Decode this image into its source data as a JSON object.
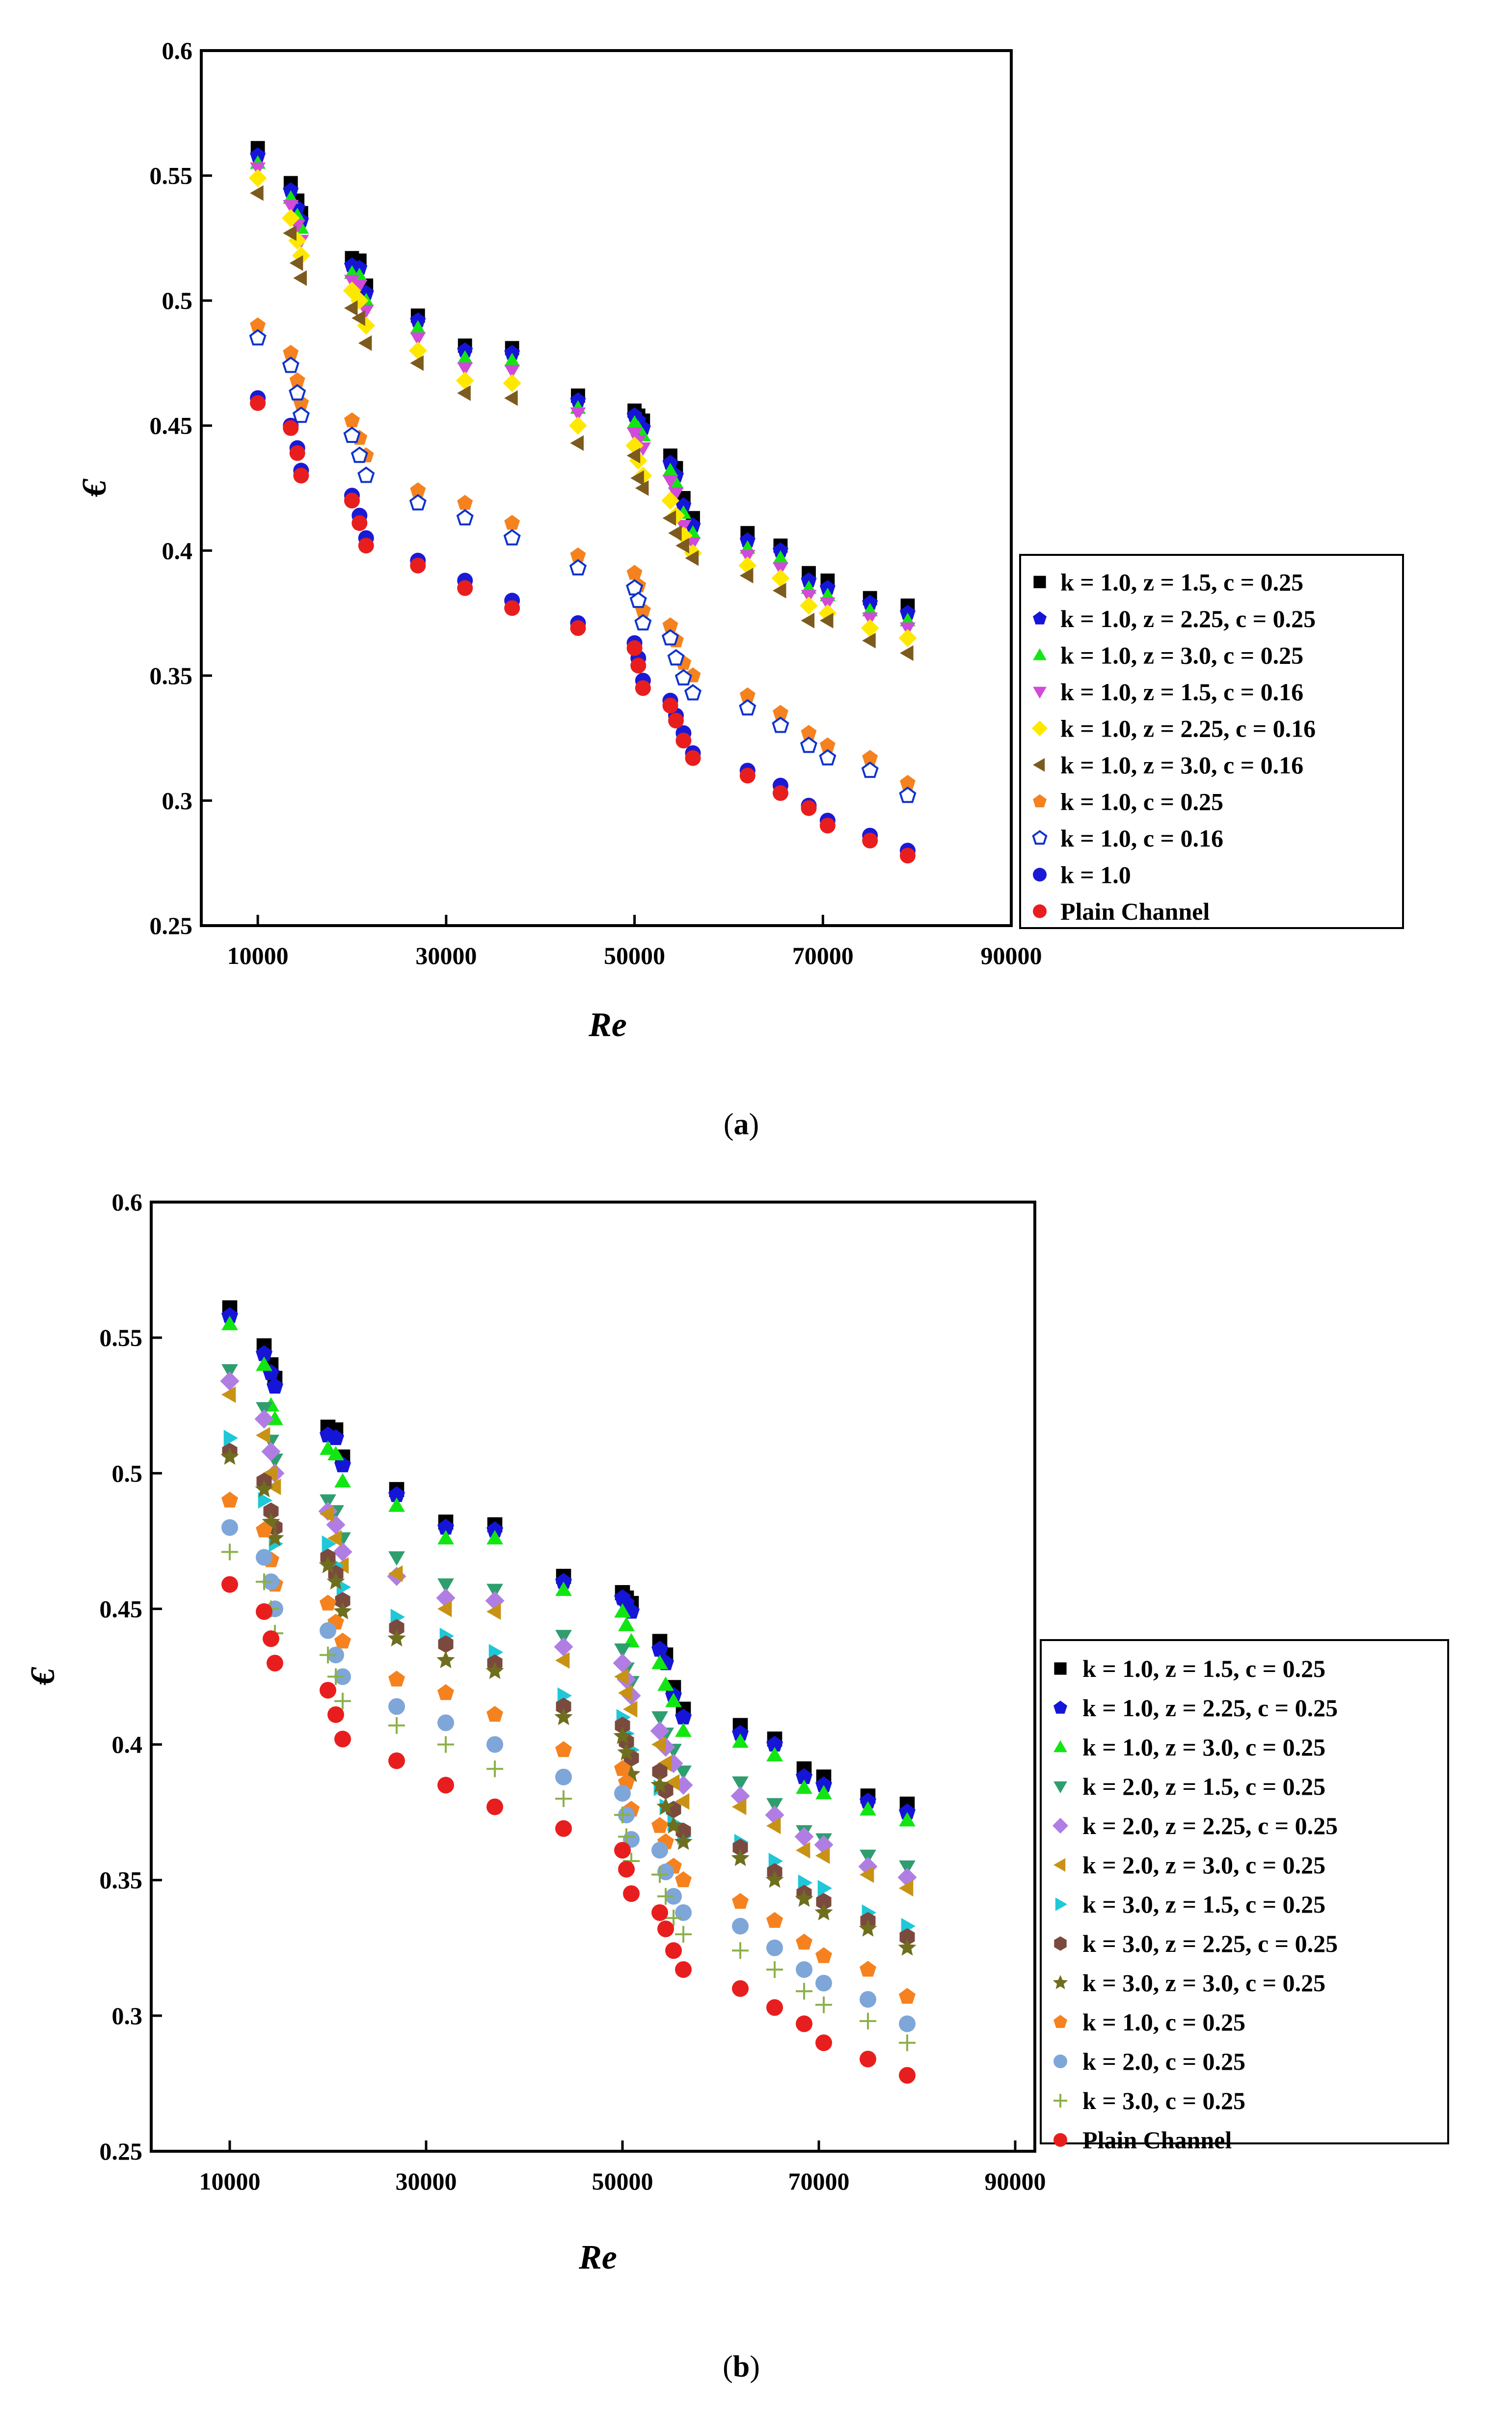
{
  "chart_data": [
    {
      "panel": "a",
      "caption": "a",
      "type": "scatter",
      "xlabel": "Re",
      "ylabel": "€",
      "xlim": [
        4000,
        90000
      ],
      "ylim": [
        0.25,
        0.6
      ],
      "xticks": [
        10000,
        30000,
        50000,
        70000,
        90000
      ],
      "xtick_labels": [
        "10000",
        "30000",
        "50000",
        "70000",
        "90000"
      ],
      "yticks": [
        0.25,
        0.3,
        0.35,
        0.4,
        0.45,
        0.5,
        0.55,
        0.6
      ],
      "ytick_labels": [
        "0.25",
        "0.3",
        "0.35",
        "0.4",
        "0.45",
        "0.5",
        "0.55",
        "0.6"
      ],
      "legend_position": "right",
      "x": [
        10000,
        13500,
        14200,
        14600,
        20000,
        20800,
        21500,
        27000,
        32000,
        37000,
        44000,
        50000,
        50400,
        50900,
        53800,
        54400,
        55200,
        56200,
        62000,
        65500,
        68500,
        70500,
        75000,
        79000
      ],
      "series": [
        {
          "name": "k = 1.0, z = 1.5, c = 0.25",
          "marker": "square",
          "color": "#000000",
          "values": [
            0.561,
            0.547,
            0.54,
            0.535,
            0.517,
            0.516,
            0.506,
            0.494,
            0.482,
            0.481,
            0.462,
            0.456,
            0.454,
            0.452,
            0.438,
            0.433,
            0.421,
            0.413,
            0.407,
            0.402,
            0.391,
            0.388,
            0.381,
            0.378
          ]
        },
        {
          "name": "k = 1.0, z = 2.25, c = 0.25",
          "marker": "pentagon",
          "color": "#1515d8",
          "values": [
            0.558,
            0.544,
            0.537,
            0.532,
            0.514,
            0.513,
            0.503,
            0.492,
            0.48,
            0.479,
            0.46,
            0.454,
            0.452,
            0.449,
            0.435,
            0.43,
            0.418,
            0.41,
            0.404,
            0.4,
            0.388,
            0.385,
            0.379,
            0.375
          ]
        },
        {
          "name": "k = 1.0, z = 3.0, c = 0.25",
          "marker": "triangle-up",
          "color": "#12e612",
          "values": [
            0.555,
            0.541,
            0.534,
            0.529,
            0.511,
            0.51,
            0.5,
            0.489,
            0.477,
            0.476,
            0.457,
            0.451,
            0.449,
            0.446,
            0.432,
            0.427,
            0.415,
            0.407,
            0.401,
            0.397,
            0.385,
            0.382,
            0.376,
            0.372
          ]
        },
        {
          "name": "k = 1.0, z = 1.5, c = 0.16",
          "marker": "triangle-down",
          "color": "#d24ad8",
          "values": [
            0.553,
            0.538,
            0.53,
            0.524,
            0.508,
            0.506,
            0.496,
            0.485,
            0.473,
            0.472,
            0.455,
            0.447,
            0.444,
            0.441,
            0.428,
            0.423,
            0.41,
            0.403,
            0.398,
            0.393,
            0.382,
            0.379,
            0.373,
            0.369
          ]
        },
        {
          "name": "k = 1.0, z = 2.25, c = 0.16",
          "marker": "diamond",
          "color": "#ffe800",
          "values": [
            0.549,
            0.533,
            0.524,
            0.518,
            0.504,
            0.5,
            0.49,
            0.48,
            0.468,
            0.467,
            0.45,
            0.442,
            0.436,
            0.43,
            0.42,
            0.414,
            0.406,
            0.399,
            0.394,
            0.389,
            0.378,
            0.375,
            0.369,
            0.365
          ]
        },
        {
          "name": "k = 1.0, z = 3.0, c = 0.16",
          "marker": "triangle-left",
          "color": "#7d5a1e",
          "values": [
            0.543,
            0.527,
            0.515,
            0.509,
            0.497,
            0.493,
            0.483,
            0.475,
            0.463,
            0.461,
            0.443,
            0.438,
            0.429,
            0.425,
            0.413,
            0.407,
            0.402,
            0.397,
            0.39,
            0.384,
            0.372,
            0.372,
            0.364,
            0.359
          ]
        },
        {
          "name": "k = 1.0, c = 0.25",
          "marker": "pentagon",
          "color": "#f5821e",
          "values": [
            0.49,
            0.479,
            0.468,
            0.459,
            0.452,
            0.445,
            0.438,
            0.424,
            0.419,
            0.411,
            0.398,
            0.391,
            0.386,
            0.376,
            0.37,
            0.364,
            0.355,
            0.35,
            0.342,
            0.335,
            0.327,
            0.322,
            0.317,
            0.307
          ]
        },
        {
          "name": "k = 1.0, c = 0.16",
          "marker": "pentagon-open",
          "color": "#0f33cc",
          "values": [
            0.485,
            0.474,
            0.463,
            0.454,
            0.446,
            0.438,
            0.43,
            0.419,
            0.413,
            0.405,
            0.393,
            0.385,
            0.38,
            0.371,
            0.365,
            0.357,
            0.349,
            0.343,
            0.337,
            0.33,
            0.322,
            0.317,
            0.312,
            0.302
          ]
        },
        {
          "name": "k = 1.0",
          "marker": "circle",
          "color": "#1a1ad6",
          "values": [
            0.461,
            0.45,
            0.441,
            0.432,
            0.422,
            0.414,
            0.405,
            0.396,
            0.388,
            0.38,
            0.371,
            0.363,
            0.357,
            0.348,
            0.34,
            0.334,
            0.327,
            0.319,
            0.312,
            0.306,
            0.298,
            0.292,
            0.286,
            0.28
          ]
        },
        {
          "name": "Plain Channel",
          "marker": "circle",
          "color": "#e81e1e",
          "values": [
            0.459,
            0.449,
            0.439,
            0.43,
            0.42,
            0.411,
            0.402,
            0.394,
            0.385,
            0.377,
            0.369,
            0.361,
            0.354,
            0.345,
            0.338,
            0.332,
            0.324,
            0.317,
            0.31,
            0.303,
            0.297,
            0.29,
            0.284,
            0.278
          ]
        }
      ]
    },
    {
      "panel": "b",
      "caption": "b",
      "type": "scatter",
      "xlabel": "Re",
      "ylabel": "€",
      "xlim": [
        2000,
        92000
      ],
      "ylim": [
        0.25,
        0.6
      ],
      "xticks": [
        10000,
        30000,
        50000,
        70000,
        90000
      ],
      "xtick_labels": [
        "10000",
        "30000",
        "50000",
        "70000",
        "90000"
      ],
      "yticks": [
        0.25,
        0.3,
        0.35,
        0.4,
        0.45,
        0.5,
        0.55,
        0.6
      ],
      "ytick_labels": [
        "0.25",
        "0.3",
        "0.35",
        "0.4",
        "0.45",
        "0.5",
        "0.55",
        "0.6"
      ],
      "legend_position": "right",
      "x": [
        10000,
        13500,
        14200,
        14600,
        20000,
        20800,
        21500,
        27000,
        32000,
        37000,
        44000,
        50000,
        50400,
        50900,
        53800,
        54400,
        55200,
        56200,
        62000,
        65500,
        68500,
        70500,
        75000,
        79000
      ],
      "series": [
        {
          "name": "k = 1.0, z = 1.5, c = 0.25",
          "marker": "square",
          "color": "#000000",
          "values": [
            0.561,
            0.547,
            0.54,
            0.535,
            0.517,
            0.516,
            0.506,
            0.494,
            0.482,
            0.481,
            0.462,
            0.456,
            0.454,
            0.452,
            0.438,
            0.433,
            0.421,
            0.413,
            0.407,
            0.402,
            0.391,
            0.388,
            0.381,
            0.378
          ]
        },
        {
          "name": "k = 1.0, z = 2.25, c = 0.25",
          "marker": "pentagon",
          "color": "#1515d8",
          "values": [
            0.558,
            0.544,
            0.537,
            0.532,
            0.514,
            0.513,
            0.503,
            0.492,
            0.48,
            0.479,
            0.46,
            0.454,
            0.452,
            0.449,
            0.435,
            0.43,
            0.418,
            0.41,
            0.404,
            0.4,
            0.388,
            0.385,
            0.379,
            0.375
          ]
        },
        {
          "name": "k = 1.0, z = 3.0, c = 0.25",
          "marker": "triangle-up",
          "color": "#12e612",
          "values": [
            0.555,
            0.54,
            0.525,
            0.52,
            0.509,
            0.507,
            0.497,
            0.488,
            0.476,
            0.476,
            0.457,
            0.449,
            0.444,
            0.438,
            0.43,
            0.422,
            0.416,
            0.405,
            0.401,
            0.396,
            0.384,
            0.382,
            0.376,
            0.372
          ]
        },
        {
          "name": "k = 2.0, z = 1.5, c = 0.25",
          "marker": "triangle-down",
          "color": "#2e9e6e",
          "values": [
            0.538,
            0.524,
            0.512,
            0.505,
            0.49,
            0.486,
            0.476,
            0.469,
            0.459,
            0.457,
            0.44,
            0.435,
            0.428,
            0.423,
            0.41,
            0.404,
            0.398,
            0.39,
            0.386,
            0.378,
            0.368,
            0.365,
            0.359,
            0.355
          ]
        },
        {
          "name": "k = 2.0, z = 2.25, c = 0.25",
          "marker": "diamond",
          "color": "#b07ee2",
          "values": [
            0.534,
            0.52,
            0.508,
            0.5,
            0.486,
            0.481,
            0.471,
            0.462,
            0.454,
            0.453,
            0.436,
            0.43,
            0.424,
            0.418,
            0.405,
            0.399,
            0.393,
            0.385,
            0.381,
            0.374,
            0.366,
            0.363,
            0.355,
            0.351
          ]
        },
        {
          "name": "k = 2.0, z = 3.0, c = 0.25",
          "marker": "triangle-left",
          "color": "#c89214",
          "values": [
            0.529,
            0.514,
            0.5,
            0.495,
            0.485,
            0.476,
            0.466,
            0.463,
            0.45,
            0.449,
            0.431,
            0.425,
            0.419,
            0.413,
            0.4,
            0.393,
            0.386,
            0.379,
            0.377,
            0.37,
            0.361,
            0.359,
            0.352,
            0.347
          ]
        },
        {
          "name": "k = 3.0, z = 1.5, c = 0.25",
          "marker": "triangle-right",
          "color": "#1ec8d8",
          "values": [
            0.513,
            0.49,
            0.48,
            0.474,
            0.474,
            0.466,
            0.458,
            0.447,
            0.44,
            0.434,
            0.418,
            0.41,
            0.404,
            0.398,
            0.384,
            0.377,
            0.371,
            0.366,
            0.364,
            0.357,
            0.349,
            0.347,
            0.338,
            0.333
          ]
        },
        {
          "name": "k = 3.0, z = 2.25, c = 0.25",
          "marker": "hexagon",
          "color": "#7b4a3e",
          "values": [
            0.508,
            0.497,
            0.486,
            0.48,
            0.469,
            0.463,
            0.453,
            0.443,
            0.437,
            0.43,
            0.414,
            0.407,
            0.401,
            0.395,
            0.39,
            0.383,
            0.376,
            0.368,
            0.362,
            0.353,
            0.345,
            0.342,
            0.335,
            0.329
          ]
        },
        {
          "name": "k = 3.0, z = 3.0, c = 0.25",
          "marker": "star",
          "color": "#6e6e1e",
          "values": [
            0.506,
            0.494,
            0.482,
            0.476,
            0.466,
            0.46,
            0.449,
            0.439,
            0.431,
            0.427,
            0.41,
            0.403,
            0.397,
            0.389,
            0.385,
            0.377,
            0.37,
            0.364,
            0.358,
            0.35,
            0.343,
            0.338,
            0.332,
            0.325
          ]
        },
        {
          "name": "k = 1.0, c = 0.25",
          "marker": "pentagon",
          "color": "#f5821e",
          "values": [
            0.49,
            0.479,
            0.468,
            0.459,
            0.452,
            0.445,
            0.438,
            0.424,
            0.419,
            0.411,
            0.398,
            0.391,
            0.386,
            0.376,
            0.37,
            0.364,
            0.355,
            0.35,
            0.342,
            0.335,
            0.327,
            0.322,
            0.317,
            0.307
          ]
        },
        {
          "name": "k = 2.0, c = 0.25",
          "marker": "circle",
          "color": "#7ea6d8",
          "values": [
            0.48,
            0.469,
            0.46,
            0.45,
            0.442,
            0.433,
            0.425,
            0.414,
            0.408,
            0.4,
            0.388,
            0.382,
            0.374,
            0.365,
            0.361,
            0.353,
            0.344,
            0.338,
            0.333,
            0.325,
            0.317,
            0.312,
            0.306,
            0.297
          ]
        },
        {
          "name": "k = 3.0, c = 0.25",
          "marker": "plus",
          "color": "#8cb04a",
          "values": [
            0.471,
            0.46,
            0.45,
            0.441,
            0.433,
            0.425,
            0.416,
            0.407,
            0.4,
            0.391,
            0.38,
            0.374,
            0.366,
            0.357,
            0.352,
            0.344,
            0.336,
            0.33,
            0.324,
            0.317,
            0.309,
            0.304,
            0.298,
            0.29
          ]
        },
        {
          "name": "Plain Channel",
          "marker": "circle",
          "color": "#e81e1e",
          "values": [
            0.459,
            0.449,
            0.439,
            0.43,
            0.42,
            0.411,
            0.402,
            0.394,
            0.385,
            0.377,
            0.369,
            0.361,
            0.354,
            0.345,
            0.338,
            0.332,
            0.324,
            0.317,
            0.31,
            0.303,
            0.297,
            0.29,
            0.284,
            0.278
          ]
        }
      ]
    }
  ]
}
